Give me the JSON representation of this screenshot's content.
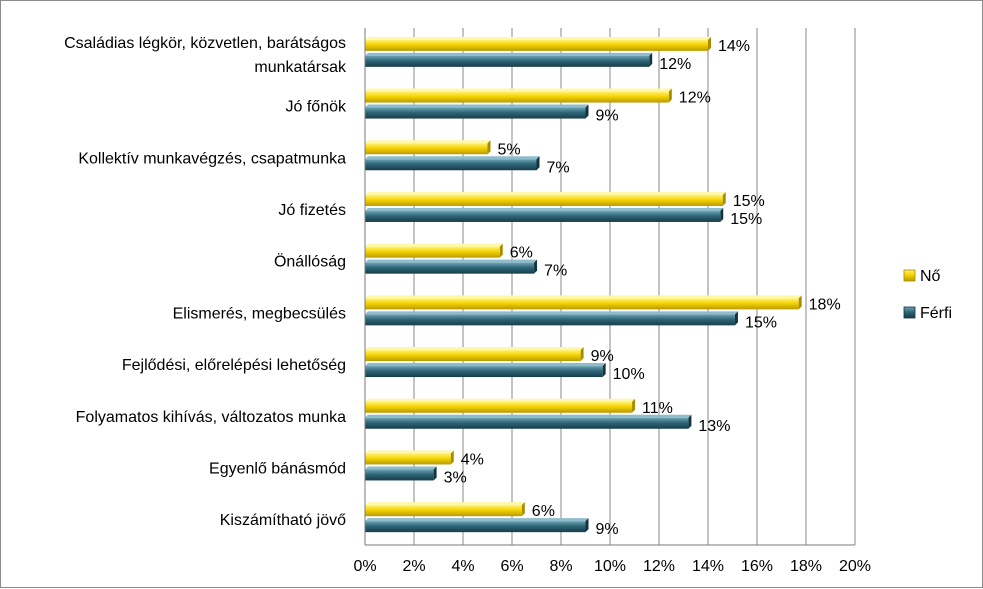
{
  "chart_data": {
    "type": "bar",
    "orientation": "horizontal",
    "categories": [
      [
        "Családias légkör, közvetlen, barátságos",
        "munkatársak"
      ],
      [
        "Jó főnök"
      ],
      [
        "Kollektív munkavégzés, csapatmunka"
      ],
      [
        "Jó fizetés"
      ],
      [
        "Önállóság"
      ],
      [
        "Elismerés, megbecsülés"
      ],
      [
        "Fejlődési, előrelépési lehetőség"
      ],
      [
        "Folyamatos kihívás, változatos munka"
      ],
      [
        "Egyenlő bánásmód"
      ],
      [
        "Kiszámítható jövő"
      ]
    ],
    "series": [
      {
        "name": "Nő",
        "color": "#f5d300",
        "values": [
          14,
          12.4,
          5,
          14.6,
          5.5,
          17.7,
          8.8,
          10.9,
          3.5,
          6.4
        ],
        "labels": [
          "14%",
          "12%",
          "5%",
          "15%",
          "6%",
          "18%",
          "9%",
          "11%",
          "4%",
          "6%"
        ]
      },
      {
        "name": "Férfi",
        "color": "#2e6678",
        "values": [
          11.6,
          9,
          7,
          14.5,
          6.9,
          15.1,
          9.7,
          13.2,
          2.8,
          9
        ],
        "labels": [
          "12%",
          "9%",
          "7%",
          "15%",
          "7%",
          "15%",
          "10%",
          "13%",
          "3%",
          "9%"
        ]
      }
    ],
    "xlim": [
      0,
      20
    ],
    "xticks": [
      "0%",
      "2%",
      "4%",
      "6%",
      "8%",
      "10%",
      "12%",
      "14%",
      "16%",
      "18%",
      "20%"
    ],
    "grid": true,
    "legend_position": "right"
  }
}
